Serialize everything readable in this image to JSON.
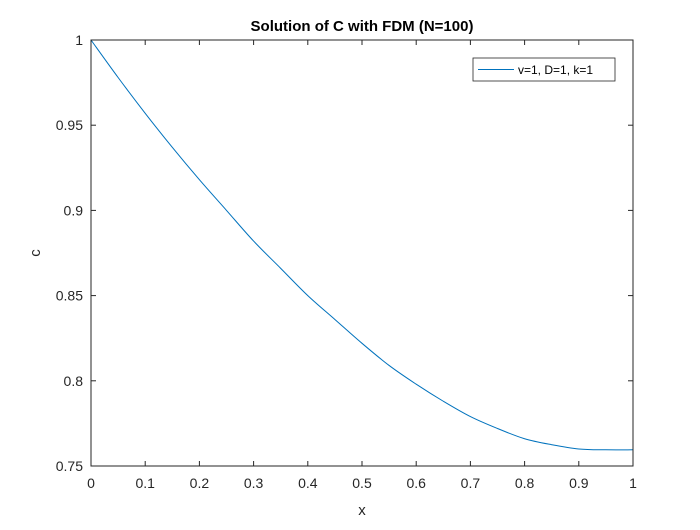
{
  "chart_data": {
    "type": "line",
    "title": "Solution of C with FDM (N=100)",
    "xlabel": "x",
    "ylabel": "c",
    "xlim": [
      0,
      1
    ],
    "ylim": [
      0.75,
      1
    ],
    "xticks": [
      "0",
      "0.1",
      "0.2",
      "0.3",
      "0.4",
      "0.5",
      "0.6",
      "0.7",
      "0.8",
      "0.9",
      "1"
    ],
    "yticks": [
      "0.75",
      "0.8",
      "0.85",
      "0.9",
      "0.95",
      "1"
    ],
    "grid": false,
    "legend_position": "top-right",
    "series": [
      {
        "name": "v=1, D=1, k=1",
        "color": "#0072BD",
        "x": [
          0,
          0.05,
          0.1,
          0.15,
          0.2,
          0.25,
          0.3,
          0.35,
          0.4,
          0.45,
          0.5,
          0.55,
          0.6,
          0.65,
          0.7,
          0.75,
          0.8,
          0.85,
          0.9,
          0.95,
          1
        ],
        "y": [
          1,
          0.978,
          0.957,
          0.937,
          0.918,
          0.9,
          0.882,
          0.866,
          0.85,
          0.836,
          0.822,
          0.809,
          0.798,
          0.788,
          0.779,
          0.772,
          0.766,
          0.7625,
          0.76,
          0.7595,
          0.7595
        ]
      }
    ]
  }
}
